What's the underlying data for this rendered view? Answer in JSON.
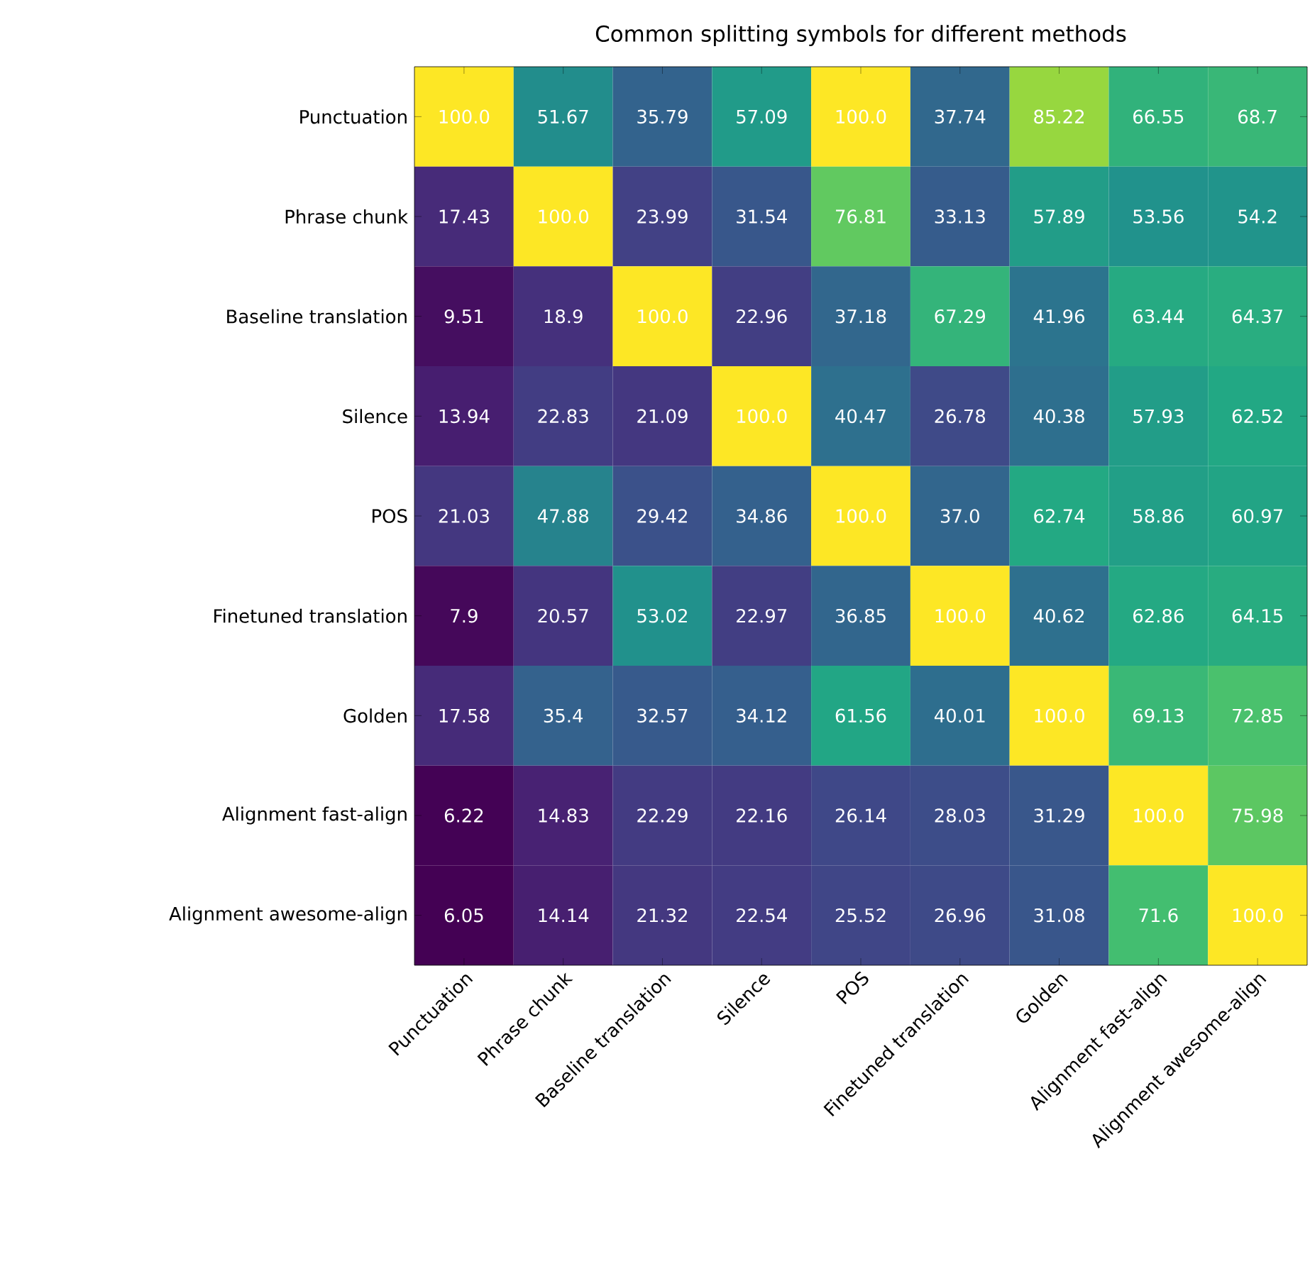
{
  "chart_data": {
    "type": "heatmap",
    "title": "Common splitting symbols for different methods",
    "categories": [
      "Punctuation",
      "Phrase chunk",
      "Baseline translation",
      "Silence",
      "POS",
      "Finetuned translation",
      "Golden",
      "Alignment fast-align",
      "Alignment awesome-align"
    ],
    "y_categories": [
      "Punctuation",
      "Phrase chunk",
      "Baseline translation",
      "Silence",
      "POS",
      "Finetuned translation",
      "Golden",
      "Alignment fast-align",
      "Alignment awesome-align"
    ],
    "cells": [
      [
        100.0,
        51.67,
        35.79,
        57.09,
        100.0,
        37.74,
        85.22,
        66.55,
        68.7
      ],
      [
        17.43,
        100.0,
        23.99,
        31.54,
        76.81,
        33.13,
        57.89,
        53.56,
        54.2
      ],
      [
        9.51,
        18.9,
        100.0,
        22.96,
        37.18,
        67.29,
        41.96,
        63.44,
        64.37
      ],
      [
        13.94,
        22.83,
        21.09,
        100.0,
        40.47,
        26.78,
        40.38,
        57.93,
        62.52
      ],
      [
        21.03,
        47.88,
        29.42,
        34.86,
        100.0,
        37.0,
        62.74,
        58.86,
        60.97
      ],
      [
        7.9,
        20.57,
        53.02,
        22.97,
        36.85,
        100.0,
        40.62,
        62.86,
        64.15
      ],
      [
        17.58,
        35.4,
        32.57,
        34.12,
        61.56,
        40.01,
        100.0,
        69.13,
        72.85
      ],
      [
        6.22,
        14.83,
        22.29,
        22.16,
        26.14,
        28.03,
        31.29,
        100.0,
        75.98
      ],
      [
        6.05,
        14.14,
        21.32,
        22.54,
        25.52,
        26.96,
        31.08,
        71.6,
        100.0
      ]
    ],
    "cell_labels": [
      [
        "100.0",
        "51.67",
        "35.79",
        "57.09",
        "100.0",
        "37.74",
        "85.22",
        "66.55",
        "68.7"
      ],
      [
        "17.43",
        "100.0",
        "23.99",
        "31.54",
        "76.81",
        "33.13",
        "57.89",
        "53.56",
        "54.2"
      ],
      [
        "9.51",
        "18.9",
        "100.0",
        "22.96",
        "37.18",
        "67.29",
        "41.96",
        "63.44",
        "64.37"
      ],
      [
        "13.94",
        "22.83",
        "21.09",
        "100.0",
        "40.47",
        "26.78",
        "40.38",
        "57.93",
        "62.52"
      ],
      [
        "21.03",
        "47.88",
        "29.42",
        "34.86",
        "100.0",
        "37.0",
        "62.74",
        "58.86",
        "60.97"
      ],
      [
        "7.9",
        "20.57",
        "53.02",
        "22.97",
        "36.85",
        "100.0",
        "40.62",
        "62.86",
        "64.15"
      ],
      [
        "17.58",
        "35.4",
        "32.57",
        "34.12",
        "61.56",
        "40.01",
        "100.0",
        "69.13",
        "72.85"
      ],
      [
        "6.22",
        "14.83",
        "22.29",
        "22.16",
        "26.14",
        "28.03",
        "31.29",
        "100.0",
        "75.98"
      ],
      [
        "6.05",
        "14.14",
        "21.32",
        "22.54",
        "25.52",
        "26.96",
        "31.08",
        "71.6",
        "100.0"
      ]
    ]
  }
}
